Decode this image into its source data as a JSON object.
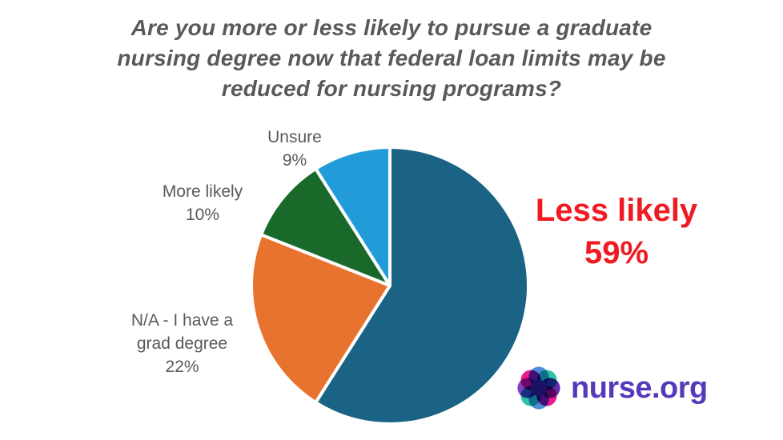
{
  "title": {
    "lines": [
      "Are you more or less likely to pursue a graduate",
      "nursing degree now that federal loan limits may be",
      "reduced for nursing programs?"
    ],
    "color": "#595959"
  },
  "chart_data": {
    "type": "pie",
    "title": "Are you more or less likely to pursue a graduate nursing degree now that federal loan limits may be reduced for nursing programs?",
    "start_angle_deg": 0,
    "direction": "clockwise",
    "slices": [
      {
        "id": "less-likely",
        "label": "Less likely",
        "value": 59,
        "pct_label": "59%",
        "color": "#1b6385"
      },
      {
        "id": "na-grad-degree",
        "label": "N/A - I have a grad degree",
        "value": 22,
        "pct_label": "22%",
        "color": "#e8732f"
      },
      {
        "id": "more-likely",
        "label": "More likely",
        "value": 10,
        "pct_label": "10%",
        "color": "#19692a"
      },
      {
        "id": "unsure",
        "label": "Unsure",
        "value": 9,
        "pct_label": "9%",
        "color": "#219cd8"
      }
    ],
    "slice_border_color": "#ffffff",
    "highlight_label_color": "#ee1b22",
    "label_color": "#595959",
    "legend": "none"
  },
  "labels": {
    "unsure": {
      "lines": [
        "Unsure",
        "9%"
      ]
    },
    "more_likely": {
      "lines": [
        "More likely",
        "10%"
      ]
    },
    "na": {
      "lines": [
        "N/A - I have a",
        "grad degree",
        "22%"
      ]
    },
    "less_likely": {
      "lines": [
        "Less likely",
        "59%"
      ]
    }
  },
  "logo": {
    "text": "nurse.org",
    "text_color": "#5639bb",
    "flower_colors": {
      "north_south": "#4a8fd6",
      "ne_sw": "#2dc5a4",
      "nw_se": "#ea1b8d",
      "west": "#7e3fc1",
      "east": "#5f2daa",
      "center": "#1d1164"
    }
  }
}
